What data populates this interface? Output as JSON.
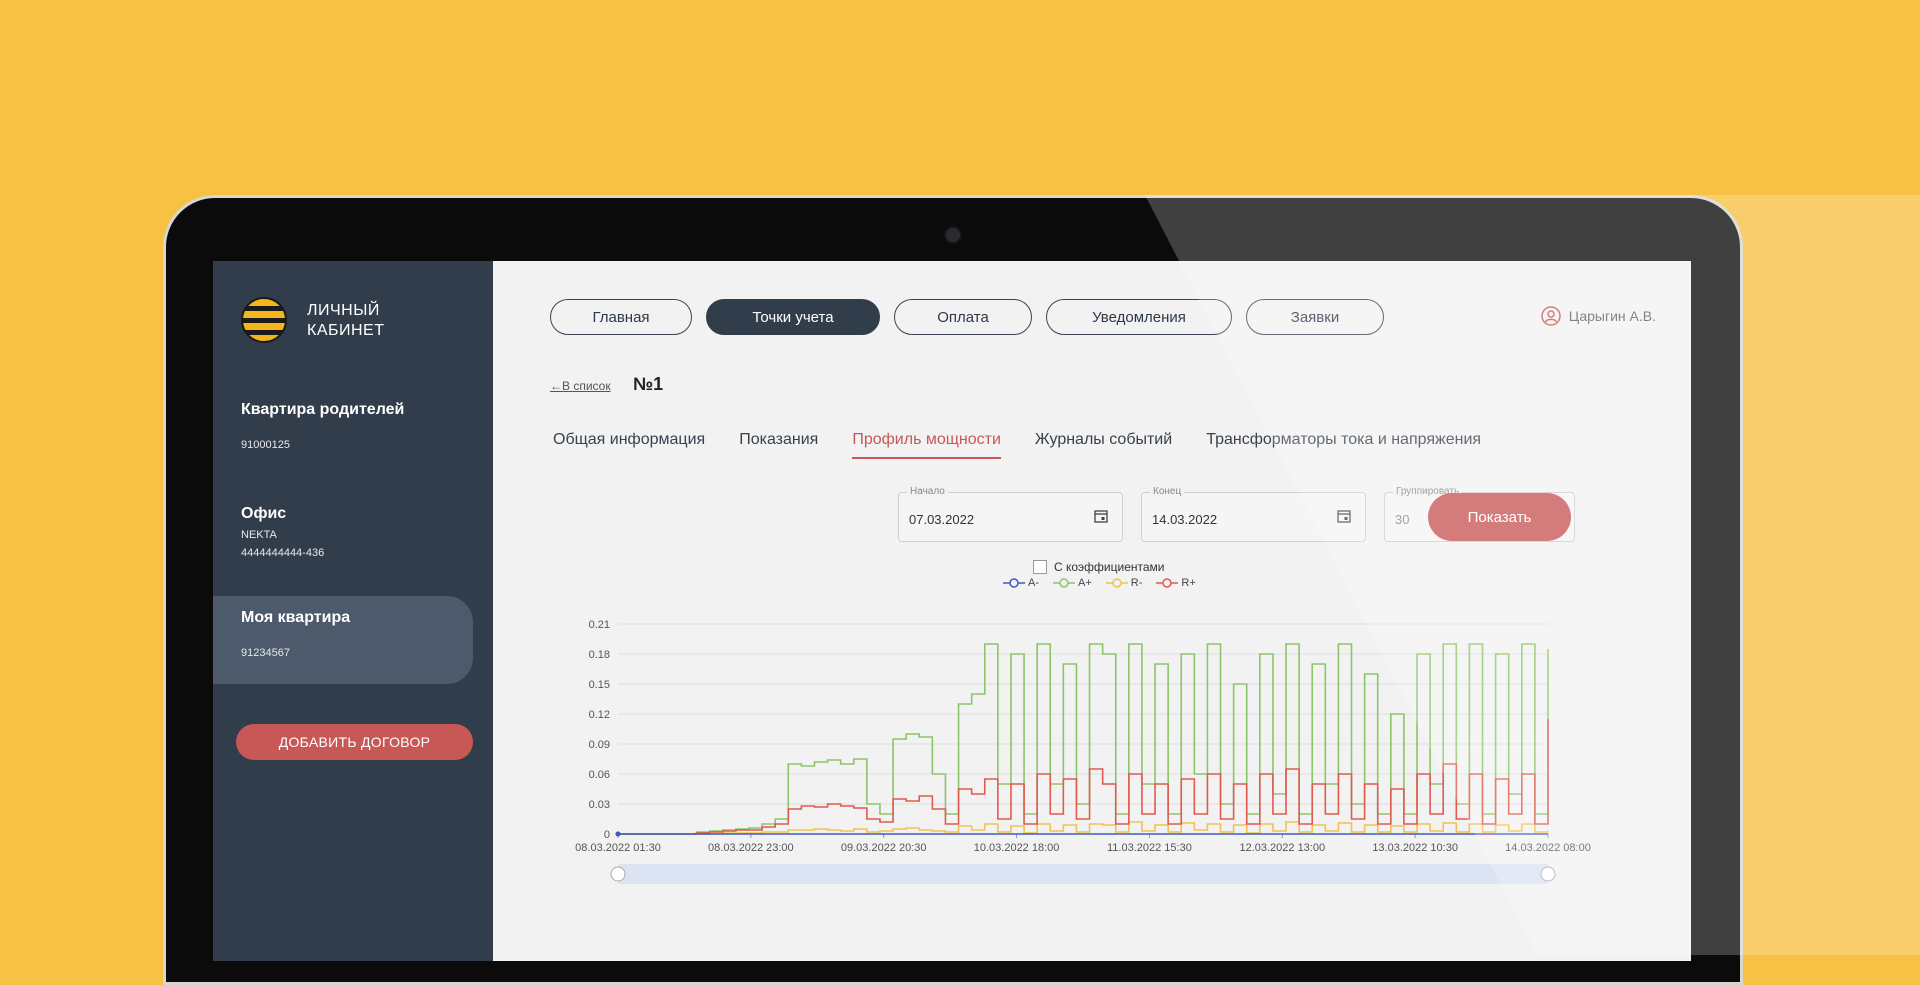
{
  "sidebar": {
    "logo_text_1": "ЛИЧНЫЙ",
    "logo_text_2": "КАБИНЕТ",
    "accounts": [
      {
        "name": "Квартира родителей",
        "sub": "",
        "num": "91000125"
      },
      {
        "name": "Офис",
        "sub": "NEKTA",
        "num": "4444444444-436"
      },
      {
        "name": "Моя квартира",
        "sub": "",
        "num": "91234567"
      }
    ],
    "add_button": "ДОБАВИТЬ ДОГОВОР"
  },
  "nav": [
    "Главная",
    "Точки учета",
    "Оплата",
    "Уведомления",
    "Заявки"
  ],
  "user": "Царыгин А.В.",
  "back_link": "В список",
  "point_title": "№1",
  "tabs": [
    "Общая информация",
    "Показания",
    "Профиль мощности",
    "Журналы событий",
    "Трансформаторы тока и напряжения"
  ],
  "filters": {
    "start_label": "Начало",
    "start_value": "07.03.2022",
    "end_label": "Конец",
    "end_value": "14.03.2022",
    "group_label": "Группировать",
    "group_value": "30",
    "show_button": "Показать"
  },
  "coef_label": "С коэффициентами",
  "colors": {
    "a_minus": "#3b5cc4",
    "a_plus": "#8cc46a",
    "r_minus": "#f2c14e",
    "r_plus": "#e05a4f"
  },
  "chart_data": {
    "type": "line",
    "legend": [
      "A-",
      "A+",
      "R-",
      "R+"
    ],
    "y_ticks": [
      "0.21",
      "0.18",
      "0.15",
      "0.12",
      "0.09",
      "0.06",
      "0.03",
      "0"
    ],
    "ylim": [
      0,
      0.21
    ],
    "x_ticks": [
      "08.03.2022 01:30",
      "08.03.2022 23:00",
      "09.03.2022 20:30",
      "10.03.2022 18:00",
      "11.03.2022 15:30",
      "12.03.2022 13:00",
      "13.03.2022 10:30",
      "14.03.2022 08:00"
    ],
    "series": [
      {
        "name": "A-",
        "values": [
          0,
          0,
          0,
          0,
          0,
          0,
          0,
          0,
          0,
          0,
          0,
          0,
          0,
          0,
          0,
          0,
          0,
          0,
          0,
          0,
          0,
          0,
          0,
          0,
          0,
          0,
          0,
          0,
          0,
          0,
          0,
          0,
          0,
          0,
          0,
          0,
          0,
          0,
          0,
          0,
          0,
          0,
          0,
          0,
          0,
          0,
          0,
          0,
          0,
          0,
          0,
          0,
          0,
          0,
          0,
          0,
          0,
          0,
          0,
          0,
          0,
          0,
          0,
          0,
          0,
          0,
          0,
          0,
          0,
          0,
          0,
          0
        ]
      },
      {
        "name": "A+",
        "values": [
          0,
          0,
          0,
          0,
          0,
          0,
          0.002,
          0.003,
          0.004,
          0.005,
          0.006,
          0.01,
          0.015,
          0.07,
          0.068,
          0.072,
          0.074,
          0.07,
          0.075,
          0.03,
          0.02,
          0.095,
          0.1,
          0.097,
          0.06,
          0.02,
          0.13,
          0.14,
          0.19,
          0.05,
          0.18,
          0.02,
          0.19,
          0.05,
          0.17,
          0.03,
          0.19,
          0.18,
          0.02,
          0.19,
          0.05,
          0.17,
          0.02,
          0.18,
          0.06,
          0.19,
          0.03,
          0.15,
          0.02,
          0.18,
          0.04,
          0.19,
          0.02,
          0.17,
          0.05,
          0.19,
          0.03,
          0.16,
          0.02,
          0.12,
          0.02,
          0.18,
          0.05,
          0.19,
          0.03,
          0.19,
          0.02,
          0.18,
          0.04,
          0.19,
          0.02,
          0.185
        ]
      },
      {
        "name": "R-",
        "values": [
          0,
          0,
          0,
          0,
          0,
          0,
          0,
          0,
          0.001,
          0.001,
          0.001,
          0.002,
          0.002,
          0.004,
          0.004,
          0.005,
          0.004,
          0.003,
          0.005,
          0.002,
          0.003,
          0.005,
          0.006,
          0.004,
          0.003,
          0.002,
          0.008,
          0.004,
          0.01,
          0.002,
          0.008,
          0.001,
          0.01,
          0.003,
          0.009,
          0.002,
          0.01,
          0.009,
          0.002,
          0.012,
          0.003,
          0.009,
          0.002,
          0.011,
          0.004,
          0.01,
          0.002,
          0.009,
          0.001,
          0.01,
          0.003,
          0.012,
          0.002,
          0.009,
          0.003,
          0.011,
          0.002,
          0.009,
          0.002,
          0.008,
          0.002,
          0.01,
          0.003,
          0.011,
          0.002,
          0.01,
          0.002,
          0.009,
          0.003,
          0.01,
          0.002,
          0.003
        ]
      },
      {
        "name": "R+",
        "values": [
          0,
          0,
          0,
          0,
          0,
          0,
          0.001,
          0.002,
          0.003,
          0.004,
          0.004,
          0.007,
          0.01,
          0.025,
          0.028,
          0.027,
          0.03,
          0.028,
          0.026,
          0.015,
          0.012,
          0.035,
          0.033,
          0.038,
          0.025,
          0.01,
          0.045,
          0.04,
          0.055,
          0.015,
          0.05,
          0.01,
          0.06,
          0.02,
          0.055,
          0.015,
          0.065,
          0.05,
          0.01,
          0.06,
          0.02,
          0.05,
          0.01,
          0.055,
          0.02,
          0.06,
          0.015,
          0.05,
          0.01,
          0.06,
          0.02,
          0.065,
          0.01,
          0.05,
          0.02,
          0.06,
          0.015,
          0.05,
          0.01,
          0.045,
          0.01,
          0.06,
          0.02,
          0.07,
          0.015,
          0.06,
          0.01,
          0.055,
          0.02,
          0.06,
          0.01,
          0.115
        ]
      }
    ]
  }
}
